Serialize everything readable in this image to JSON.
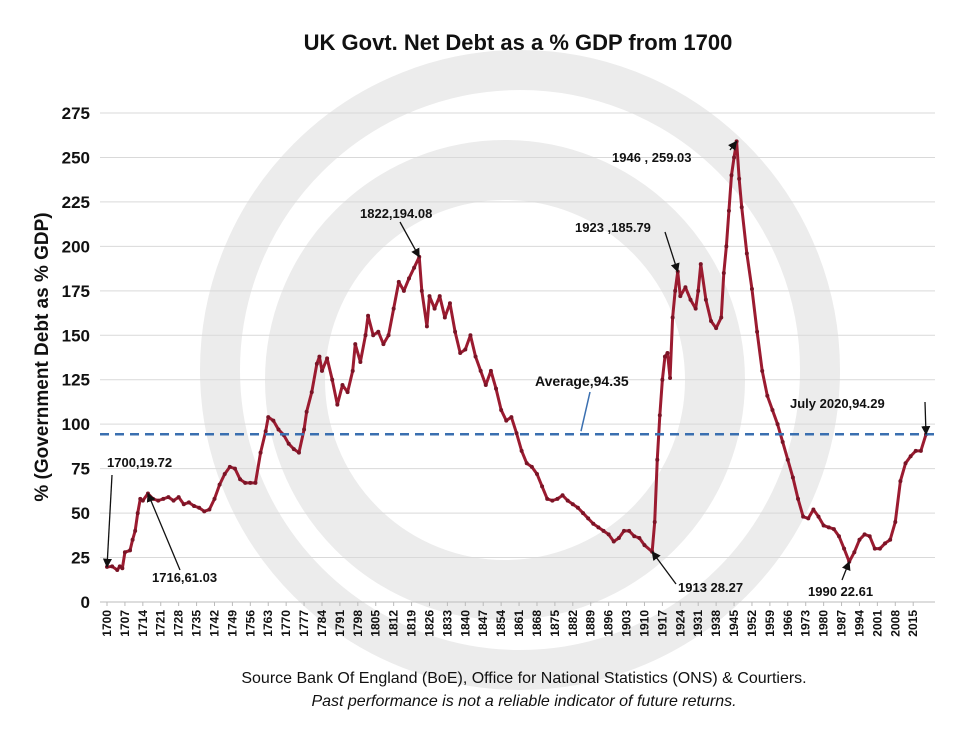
{
  "chart_data": {
    "type": "line",
    "title": "UK Govt. Net Debt as a % GDP from 1700",
    "y_label": "% (Government Debt as % GDP)",
    "source": "Source Bank Of England (BoE), Office for National Statistics (ONS) & Courtiers.",
    "disclaimer": "Past performance is not a reliable indicator of future returns.",
    "xlim": [
      1700,
      2020
    ],
    "ylim": [
      0,
      275
    ],
    "yticks": [
      0,
      25,
      50,
      75,
      100,
      125,
      150,
      175,
      200,
      225,
      250,
      275
    ],
    "xticks": [
      1700,
      1707,
      1714,
      1721,
      1728,
      1735,
      1742,
      1749,
      1756,
      1763,
      1770,
      1777,
      1784,
      1791,
      1798,
      1805,
      1812,
      1819,
      1826,
      1833,
      1840,
      1847,
      1854,
      1861,
      1868,
      1875,
      1882,
      1889,
      1896,
      1903,
      1910,
      1917,
      1924,
      1931,
      1938,
      1945,
      1952,
      1959,
      1966,
      1973,
      1980,
      1987,
      1994,
      2001,
      2008,
      2015
    ],
    "grid": true,
    "series": [
      {
        "color": "#9b1b30",
        "x": [
          1700,
          1702,
          1704,
          1705,
          1706,
          1707,
          1709,
          1710,
          1711,
          1712,
          1713,
          1714,
          1716,
          1718,
          1720,
          1722,
          1724,
          1726,
          1728,
          1730,
          1732,
          1734,
          1736,
          1738,
          1740,
          1742,
          1744,
          1746,
          1748,
          1750,
          1752,
          1754,
          1756,
          1758,
          1760,
          1762,
          1763,
          1765,
          1767,
          1769,
          1771,
          1773,
          1775,
          1777,
          1778,
          1780,
          1782,
          1783,
          1784,
          1786,
          1788,
          1790,
          1792,
          1794,
          1796,
          1797,
          1799,
          1801,
          1802,
          1804,
          1806,
          1808,
          1810,
          1812,
          1814,
          1816,
          1818,
          1820,
          1822,
          1823,
          1825,
          1826,
          1828,
          1830,
          1832,
          1834,
          1836,
          1838,
          1840,
          1842,
          1844,
          1846,
          1848,
          1850,
          1852,
          1854,
          1856,
          1858,
          1860,
          1862,
          1864,
          1866,
          1868,
          1870,
          1872,
          1874,
          1876,
          1878,
          1880,
          1882,
          1884,
          1886,
          1888,
          1890,
          1892,
          1894,
          1896,
          1898,
          1900,
          1902,
          1904,
          1906,
          1908,
          1910,
          1913,
          1914,
          1915,
          1916,
          1917,
          1918,
          1919,
          1920,
          1921,
          1922,
          1923,
          1924,
          1926,
          1928,
          1930,
          1931,
          1932,
          1934,
          1936,
          1938,
          1940,
          1941,
          1942,
          1943,
          1944,
          1945,
          1946,
          1947,
          1948,
          1950,
          1952,
          1954,
          1956,
          1958,
          1960,
          1962,
          1964,
          1966,
          1968,
          1970,
          1972,
          1974,
          1976,
          1978,
          1980,
          1982,
          1984,
          1986,
          1988,
          1990,
          1992,
          1994,
          1996,
          1998,
          2000,
          2002,
          2004,
          2006,
          2008,
          2010,
          2012,
          2014,
          2016,
          2018,
          2020
        ],
        "values": [
          19.72,
          20,
          18,
          20,
          19,
          28,
          29,
          35,
          40,
          50,
          58,
          57,
          61.03,
          58,
          57,
          58,
          59,
          57,
          59,
          55,
          56,
          54,
          53,
          51,
          52,
          58,
          66,
          72,
          76,
          75,
          69,
          67,
          67,
          67,
          84,
          96,
          104,
          102,
          97,
          94,
          89,
          86,
          84,
          97,
          107,
          118,
          134,
          138,
          130,
          137,
          125,
          111,
          122,
          118,
          130,
          145,
          135,
          150,
          161,
          150,
          152,
          145,
          150,
          165,
          180,
          175,
          182,
          188,
          194.08,
          175,
          155,
          172,
          165,
          172,
          160,
          168,
          152,
          140,
          142,
          150,
          138,
          130,
          122,
          130,
          120,
          108,
          102,
          104,
          95,
          85,
          78,
          76,
          72,
          65,
          58,
          57,
          58,
          60,
          57,
          55,
          53,
          50,
          47,
          44,
          42,
          40,
          38,
          34,
          36,
          40,
          40,
          37,
          36,
          32,
          28.27,
          45,
          80,
          105,
          125,
          138,
          140,
          126,
          160,
          175,
          185.79,
          172,
          177,
          170,
          165,
          175,
          190,
          170,
          158,
          154,
          160,
          185,
          200,
          220,
          240,
          250,
          259.03,
          238,
          222,
          196,
          176,
          152,
          130,
          116,
          108,
          100,
          90,
          80,
          70,
          58,
          48,
          47,
          52,
          48,
          43,
          42,
          41,
          37,
          30,
          22.61,
          28,
          35,
          38,
          37,
          30,
          30,
          33,
          35,
          45,
          68,
          78,
          82,
          85,
          85,
          94.29
        ]
      }
    ],
    "average": {
      "label": "Average,94.35",
      "value": 94.35,
      "color": "#3a6fb0"
    },
    "annotations": [
      {
        "label": "1700,19.72",
        "x": 1700,
        "y": 19.72
      },
      {
        "label": "1716,61.03",
        "x": 1716,
        "y": 61.03
      },
      {
        "label": "1822,194.08",
        "x": 1822,
        "y": 194.08
      },
      {
        "label": "1923 ,185.79",
        "x": 1923,
        "y": 185.79
      },
      {
        "label": "1946 , 259.03",
        "x": 1946,
        "y": 259.03
      },
      {
        "label": "1913 28.27",
        "x": 1913,
        "y": 28.27
      },
      {
        "label": "1990 22.61",
        "x": 1990,
        "y": 22.61
      },
      {
        "label": "July 2020,94.29",
        "x": 2020,
        "y": 94.29
      }
    ]
  }
}
